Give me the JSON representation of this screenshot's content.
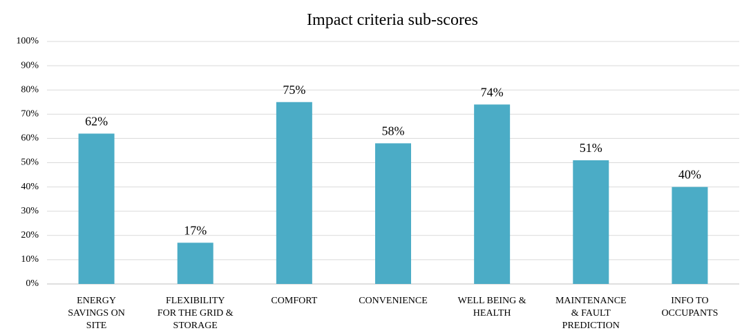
{
  "chart_data": {
    "type": "bar",
    "title": "Impact criteria sub-scores",
    "categories": [
      "ENERGY SAVINGS ON SITE",
      "FLEXIBILITY FOR THE GRID & STORAGE",
      "COMFORT",
      "CONVENIENCE",
      "WELL BEING & HEALTH",
      "MAINTENANCE & FAULT PREDICTION",
      "INFO TO OCCUPANTS"
    ],
    "values": [
      62,
      17,
      75,
      58,
      74,
      51,
      40
    ],
    "value_labels": [
      "62%",
      "17%",
      "75%",
      "58%",
      "74%",
      "51%",
      "40%"
    ],
    "color": "#4bacc6",
    "ylim": [
      0,
      100
    ],
    "yticks": [
      {
        "value": 0,
        "label": "0%"
      },
      {
        "value": 10,
        "label": "10%"
      },
      {
        "value": 20,
        "label": "20%"
      },
      {
        "value": 30,
        "label": "30%"
      },
      {
        "value": 40,
        "label": "40%"
      },
      {
        "value": 50,
        "label": "50%"
      },
      {
        "value": 60,
        "label": "60%"
      },
      {
        "value": 70,
        "label": "70%"
      },
      {
        "value": 80,
        "label": "80%"
      },
      {
        "value": 90,
        "label": "90%"
      },
      {
        "value": 100,
        "label": "100%"
      }
    ],
    "grid": true
  }
}
